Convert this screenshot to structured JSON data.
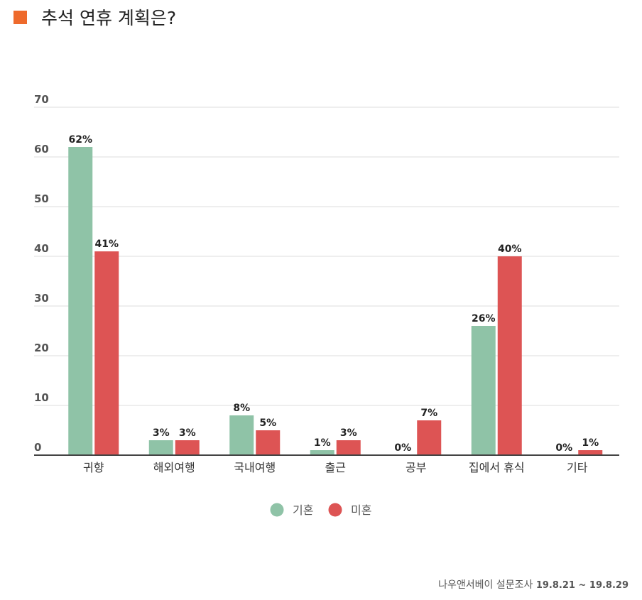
{
  "title": "추석 연휴 계획은?",
  "source": "나우앤서베이 설문조사",
  "date_range": "19.8.21 ~ 19.8.29",
  "colors": {
    "title_square": "#ee6a2c"
  },
  "chart_data": {
    "type": "bar",
    "categories": [
      "귀향",
      "해외여행",
      "국내여행",
      "출근",
      "공부",
      "집에서 휴식",
      "기타"
    ],
    "series": [
      {
        "name": "기혼",
        "color": "#8fc3a7",
        "values": [
          62,
          3,
          8,
          1,
          0,
          26,
          0
        ],
        "labels": [
          "62%",
          "3%",
          "8%",
          "1%",
          "0%",
          "26%",
          "0%"
        ]
      },
      {
        "name": "미혼",
        "color": "#dd5454",
        "values": [
          41,
          3,
          5,
          3,
          7,
          40,
          1
        ],
        "labels": [
          "41%",
          "3%",
          "5%",
          "3%",
          "7%",
          "40%",
          "1%"
        ]
      }
    ],
    "yticks": [
      "0",
      "10",
      "20",
      "30",
      "40",
      "50",
      "60",
      "70"
    ],
    "ylim": [
      0,
      70
    ],
    "grid": true,
    "legend_position": "bottom-center"
  }
}
